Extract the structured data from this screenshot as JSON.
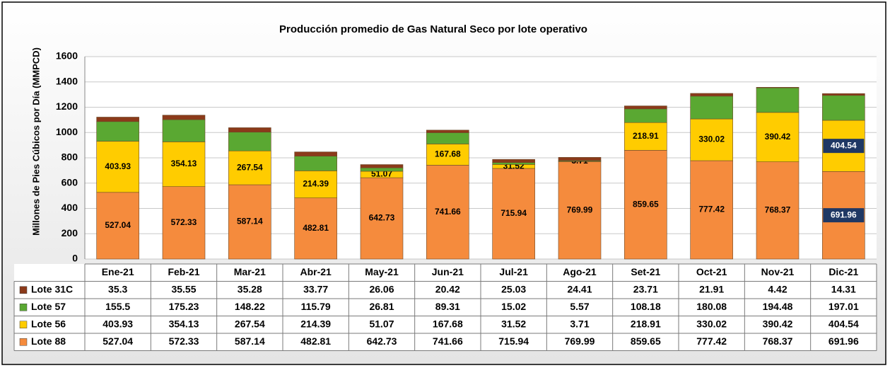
{
  "chart_data": {
    "type": "bar",
    "stacked": true,
    "title": "Producción promedio de Gas Natural Seco por lote operativo",
    "y_label": "Millones de Pies Cúbicos por Día (MMPCD)",
    "categories": [
      "Ene-21",
      "Feb-21",
      "Mar-21",
      "Abr-21",
      "May-21",
      "Jun-21",
      "Jul-21",
      "Ago-21",
      "Set-21",
      "Oct-21",
      "Nov-21",
      "Dic-21"
    ],
    "series": [
      {
        "name": "Lote 88",
        "color": "#f58b3d",
        "data_labels": true,
        "values": [
          527.04,
          572.33,
          587.14,
          482.81,
          642.73,
          741.66,
          715.94,
          769.99,
          859.65,
          777.42,
          768.37,
          691.96
        ]
      },
      {
        "name": "Lote 56",
        "color": "#ffcc00",
        "data_labels": true,
        "values": [
          403.93,
          354.13,
          267.54,
          214.39,
          51.07,
          167.68,
          31.52,
          3.71,
          218.91,
          330.02,
          390.42,
          404.54
        ]
      },
      {
        "name": "Lote 57",
        "color": "#5aa832",
        "data_labels": false,
        "values": [
          155.5,
          175.23,
          148.22,
          115.79,
          26.81,
          89.31,
          15.02,
          5.57,
          108.18,
          180.08,
          194.48,
          197.01
        ]
      },
      {
        "name": "Lote 31C",
        "color": "#8b3a1a",
        "data_labels": false,
        "values": [
          35.3,
          35.55,
          35.28,
          33.77,
          26.06,
          20.42,
          25.03,
          24.41,
          23.71,
          21.91,
          4.42,
          14.31
        ]
      }
    ],
    "ylim": [
      0,
      1600
    ],
    "yticks": [
      0,
      200,
      400,
      600,
      800,
      1000,
      1200,
      1400,
      1600
    ],
    "grid": true,
    "highlight_index": 11,
    "highlight_color": "#1f3864"
  }
}
